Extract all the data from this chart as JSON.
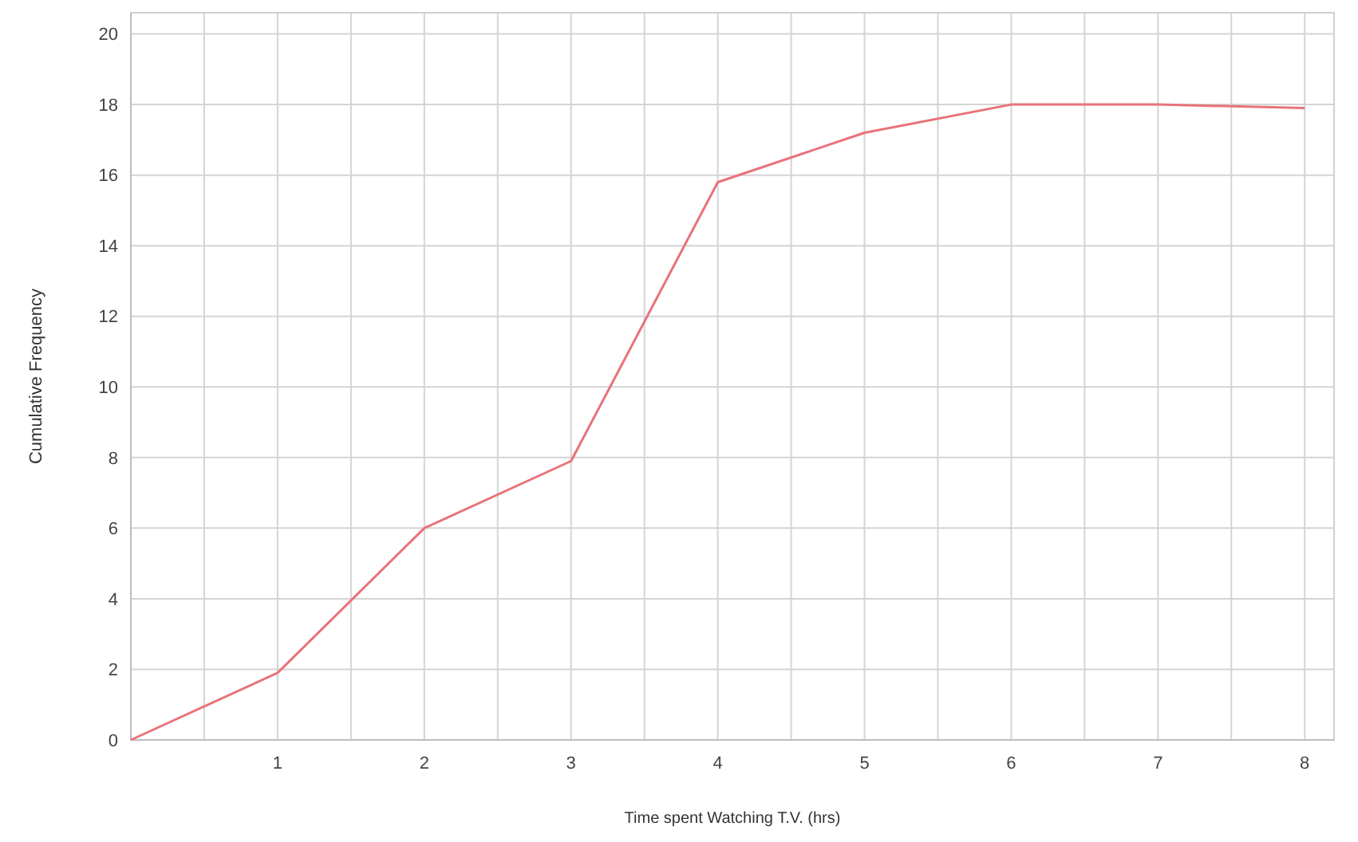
{
  "chart_data": {
    "type": "line",
    "xlabel": "Time spent Watching T.V. (hrs)",
    "ylabel": "Cumulative Frequency",
    "x": [
      0,
      1,
      2,
      3,
      4,
      5,
      6,
      7,
      8
    ],
    "series": [
      {
        "color": "#e8737a",
        "values": [
          0,
          1.9,
          6,
          7.9,
          15.8,
          17.2,
          18,
          18,
          17.9
        ]
      }
    ],
    "xlim": [
      0,
      8.2
    ],
    "xticks": [
      {
        "value": 0.5,
        "label": null
      },
      1,
      {
        "value": 1.5,
        "label": null
      },
      2,
      {
        "value": 2.5,
        "label": null
      },
      3,
      {
        "value": 3.5,
        "label": null
      },
      4,
      {
        "value": 4.5,
        "label": null
      },
      5,
      {
        "value": 5.5,
        "label": null
      },
      6,
      {
        "value": 6.5,
        "label": null
      },
      7,
      {
        "value": 7.5,
        "label": null
      },
      8
    ],
    "ylim": [
      0,
      20.6
    ],
    "yticks": [
      0,
      2,
      4,
      6,
      8,
      10,
      12,
      14,
      16,
      18,
      20
    ],
    "grid": true,
    "marker": "none",
    "line_style": "solid"
  }
}
